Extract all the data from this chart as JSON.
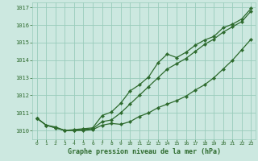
{
  "title": "Graphe pression niveau de la mer (hPa)",
  "bg_color": "#cce8e0",
  "grid_color": "#99ccbb",
  "line_color": "#2d6a2d",
  "text_color": "#2d6a2d",
  "ylim": [
    1009.5,
    1017.3
  ],
  "xlim": [
    -0.5,
    23.5
  ],
  "yticks": [
    1010,
    1011,
    1012,
    1013,
    1014,
    1015,
    1016,
    1017
  ],
  "xticks": [
    0,
    1,
    2,
    3,
    4,
    5,
    6,
    7,
    8,
    9,
    10,
    11,
    12,
    13,
    14,
    15,
    16,
    17,
    18,
    19,
    20,
    21,
    22,
    23
  ],
  "hours": [
    0,
    1,
    2,
    3,
    4,
    5,
    6,
    7,
    8,
    9,
    10,
    11,
    12,
    13,
    14,
    15,
    16,
    17,
    18,
    19,
    20,
    21,
    22,
    23
  ],
  "line_upper": [
    1010.7,
    1010.3,
    1010.2,
    1010.0,
    1010.05,
    1010.1,
    1010.15,
    1010.85,
    1011.05,
    1011.55,
    1012.25,
    1012.6,
    1013.05,
    1013.85,
    1014.35,
    1014.15,
    1014.45,
    1014.85,
    1015.15,
    1015.35,
    1015.85,
    1016.05,
    1016.35,
    1016.95
  ],
  "line_lower": [
    1010.7,
    1010.3,
    1010.15,
    1010.0,
    1010.0,
    1010.0,
    1010.05,
    1010.3,
    1010.4,
    1010.35,
    1010.5,
    1010.8,
    1011.0,
    1011.3,
    1011.5,
    1011.7,
    1011.95,
    1012.3,
    1012.6,
    1013.0,
    1013.5,
    1014.0,
    1014.6,
    1015.2
  ],
  "line_mid": [
    1010.7,
    1010.3,
    1010.15,
    1010.0,
    1010.0,
    1010.05,
    1010.1,
    1010.5,
    1010.6,
    1011.0,
    1011.5,
    1012.0,
    1012.5,
    1013.0,
    1013.5,
    1013.8,
    1014.1,
    1014.5,
    1014.9,
    1015.2,
    1015.6,
    1015.9,
    1016.2,
    1016.8
  ]
}
